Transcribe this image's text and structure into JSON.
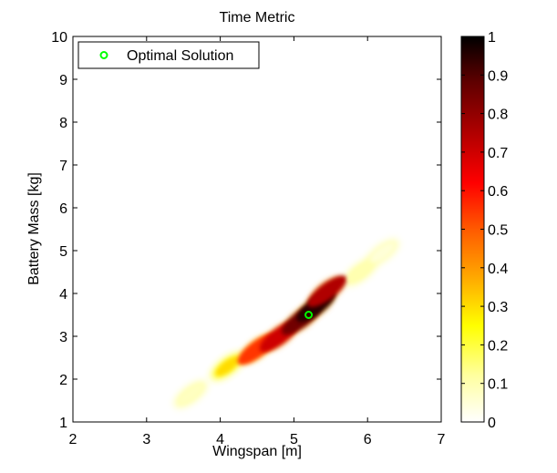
{
  "chart_data": {
    "type": "heatmap",
    "title": "Time Metric",
    "xlabel": "Wingspan [m]",
    "ylabel": "Battery Mass [kg]",
    "xlim": [
      2,
      7
    ],
    "ylim": [
      1,
      10
    ],
    "xticks": [
      "2",
      "3",
      "4",
      "5",
      "6",
      "7"
    ],
    "yticks": [
      "1",
      "2",
      "3",
      "4",
      "5",
      "6",
      "7",
      "8",
      "9",
      "10"
    ],
    "colormap": "hot-inverted",
    "colorbar": {
      "range": [
        0,
        1
      ],
      "ticks": [
        "0",
        "0.1",
        "0.2",
        "0.3",
        "0.4",
        "0.5",
        "0.6",
        "0.7",
        "0.8",
        "0.9",
        "1"
      ]
    },
    "legend": {
      "placement": "top-left",
      "entries": [
        {
          "label": "Optimal Solution",
          "marker": "circle",
          "color": "#00ff00"
        }
      ]
    },
    "optimal_solution": {
      "x": 5.2,
      "y": 3.5
    },
    "region": {
      "description_ridge": [
        {
          "x": 3.6,
          "y": 1.65,
          "v": 0.08
        },
        {
          "x": 4.1,
          "y": 2.3,
          "v": 0.3
        },
        {
          "x": 4.5,
          "y": 2.7,
          "v": 0.55
        },
        {
          "x": 4.8,
          "y": 3.0,
          "v": 0.7
        },
        {
          "x": 5.1,
          "y": 3.4,
          "v": 0.85
        },
        {
          "x": 5.3,
          "y": 3.7,
          "v": 0.95
        },
        {
          "x": 5.45,
          "y": 4.05,
          "v": 0.75
        },
        {
          "x": 5.9,
          "y": 4.5,
          "v": 0.1
        },
        {
          "x": 6.2,
          "y": 4.95,
          "v": 0.05
        }
      ]
    }
  }
}
